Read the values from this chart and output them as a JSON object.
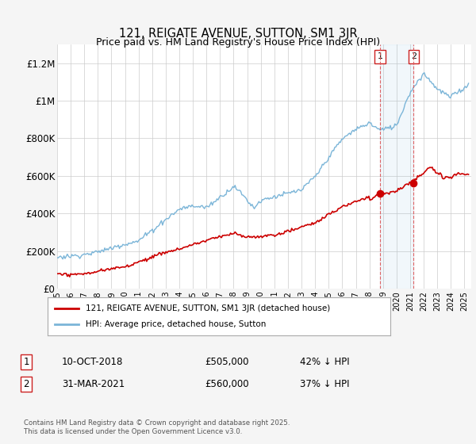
{
  "title": "121, REIGATE AVENUE, SUTTON, SM1 3JR",
  "subtitle": "Price paid vs. HM Land Registry's House Price Index (HPI)",
  "ylabel_ticks": [
    "£0",
    "£200K",
    "£400K",
    "£600K",
    "£800K",
    "£1M",
    "£1.2M"
  ],
  "ytick_values": [
    0,
    200000,
    400000,
    600000,
    800000,
    1000000,
    1200000
  ],
  "ylim": [
    0,
    1300000
  ],
  "xlim_start": 1995.0,
  "xlim_end": 2025.5,
  "hpi_color": "#7bb5d8",
  "price_color": "#cc0000",
  "marker1_date_label": "10-OCT-2018",
  "marker1_price": 505000,
  "marker1_pct": "42% ↓ HPI",
  "marker1_year": 2018.78,
  "marker2_date_label": "31-MAR-2021",
  "marker2_price": 560000,
  "marker2_pct": "37% ↓ HPI",
  "marker2_year": 2021.25,
  "legend_label1": "121, REIGATE AVENUE, SUTTON, SM1 3JR (detached house)",
  "legend_label2": "HPI: Average price, detached house, Sutton",
  "footer": "Contains HM Land Registry data © Crown copyright and database right 2025.\nThis data is licensed under the Open Government Licence v3.0.",
  "background_color": "#f5f5f5",
  "plot_bg_color": "#ffffff",
  "grid_color": "#cccccc"
}
